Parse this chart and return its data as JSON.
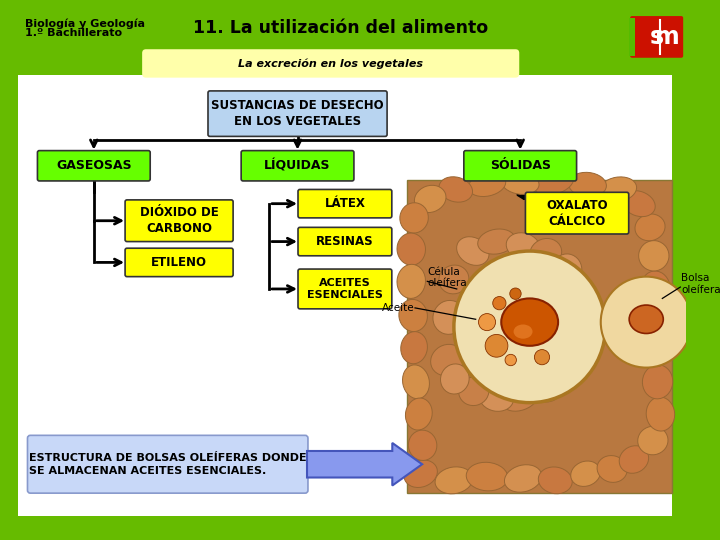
{
  "title": "11. La utilización del alimento",
  "subtitle_line1": "Biología y Geología",
  "subtitle_line2": "1.º Bachillerato",
  "banner_text": "La excreción en los vegetales",
  "bg_outer": "#66bb00",
  "content_white": "#ffffff",
  "header_green": "#66bb00",
  "header_yellow": "#ffffaa",
  "box_blue": "#b8d4f0",
  "box_green": "#66ff00",
  "box_yellow": "#ffff00",
  "box_arrow_blue": "#7799ee",
  "sm_red": "#cc1100",
  "sm_vert_green": "#55bb00",
  "main_box_text": "SUSTANCIAS DE DESECHO\nEN LOS VEGETALES",
  "cat1_text": "GASEOSAS",
  "cat2_text": "LÍQUIDAS",
  "cat3_text": "SÓLIDAS",
  "sub1a_text": "DIÓXIDO DE\nCARBONO",
  "sub1b_text": "ETILENO",
  "sub2a_text": "LÁTEX",
  "sub2b_text": "RESINAS",
  "sub2c_text": "ACEITES\nESENCIALES",
  "sub3a_text": "OXALATO\nCÁLCICO",
  "bottom_text": "ESTRUCTURA DE BOLSAS OLEÍFERAS DONDE\nSE ALMACENAN ACEITES ESENCIALES.",
  "label_aceite": "Aceite",
  "label_celula": "Célula\noleífera",
  "label_bolsa": "Bolsa\noleífera"
}
